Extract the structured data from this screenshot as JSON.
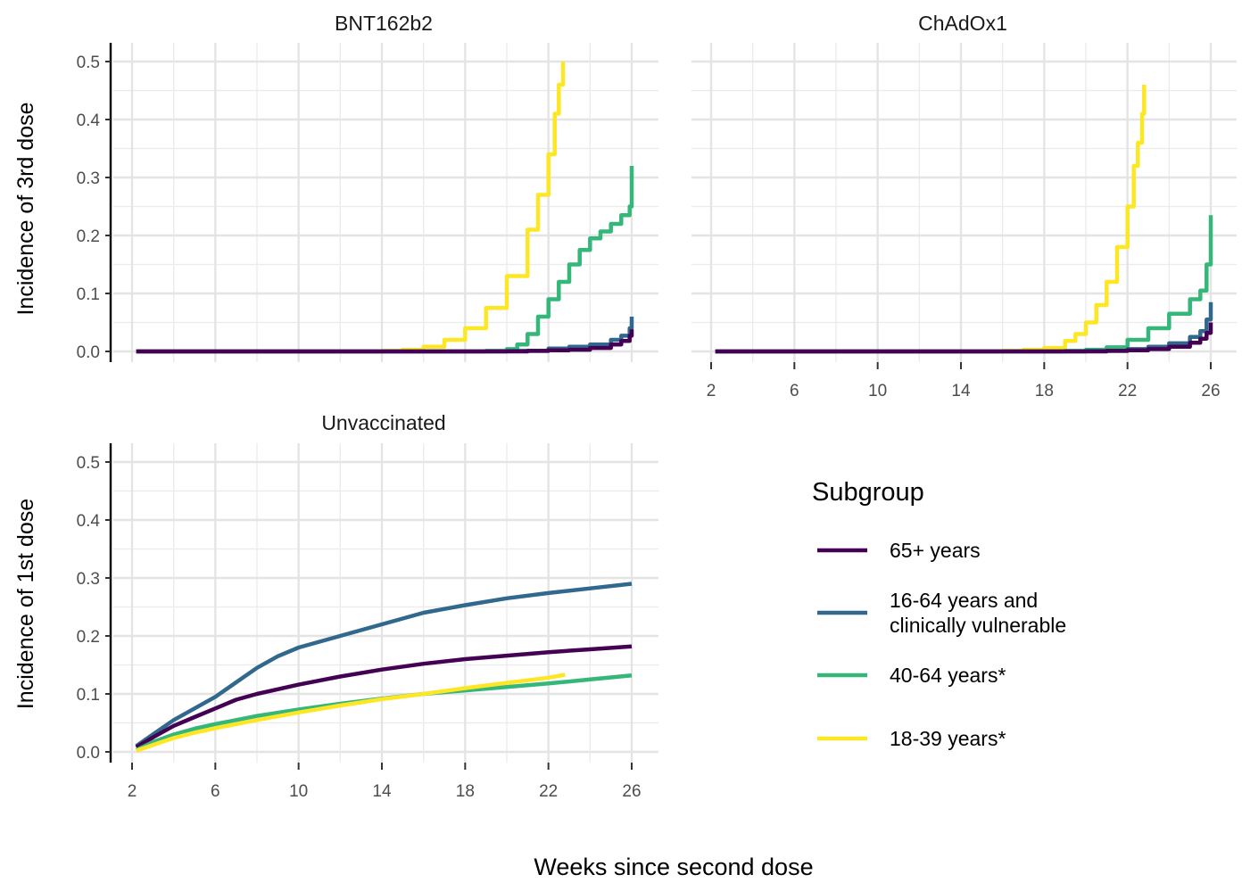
{
  "chart_data": {
    "type": "line",
    "xlabel": "Weeks since second dose",
    "x_ticks": [
      2,
      6,
      10,
      14,
      18,
      22,
      26
    ],
    "y_ticks": [
      0.0,
      0.1,
      0.2,
      0.3,
      0.4,
      0.5
    ],
    "y_tick_labels": [
      "0.0",
      "0.1",
      "0.2",
      "0.3",
      "0.4",
      "0.5"
    ],
    "xlim": [
      2,
      26
    ],
    "ylim": [
      0,
      0.5
    ],
    "grid": true,
    "legend": {
      "title": "Subgroup",
      "placement": "bottom-right",
      "entries": [
        {
          "key": "s65",
          "lines": [
            "65+ years"
          ],
          "color": "#440154"
        },
        {
          "key": "s1664",
          "lines": [
            "16-64 years and",
            "clinically vulnerable"
          ],
          "color": "#31688e"
        },
        {
          "key": "s4064",
          "lines": [
            "40-64 years*"
          ],
          "color": "#35b779"
        },
        {
          "key": "s1839",
          "lines": [
            "18-39 years*"
          ],
          "color": "#fde725"
        }
      ]
    },
    "panels": [
      {
        "key": "bnt",
        "title": "BNT162b2",
        "ylabel": "Incidence of 3rd dose",
        "show_x_ticks": false,
        "step": true,
        "series": [
          {
            "key": "s1839",
            "x": [
              2.2,
              12,
              14,
              15,
              16,
              17,
              18,
              19,
              20,
              21,
              21.5,
              22,
              22.3,
              22.5,
              22.7
            ],
            "y": [
              0,
              0,
              0.001,
              0.003,
              0.008,
              0.02,
              0.04,
              0.075,
              0.13,
              0.21,
              0.27,
              0.34,
              0.41,
              0.46,
              0.5
            ]
          },
          {
            "key": "s4064",
            "x": [
              2.2,
              17,
              19,
              20,
              20.5,
              21,
              21.5,
              22,
              22.5,
              23,
              23.5,
              24,
              24.5,
              25,
              25.5,
              25.9,
              26
            ],
            "y": [
              0,
              0,
              0.001,
              0.004,
              0.012,
              0.03,
              0.06,
              0.09,
              0.12,
              0.15,
              0.175,
              0.195,
              0.207,
              0.22,
              0.235,
              0.25,
              0.32
            ]
          },
          {
            "key": "s1664",
            "x": [
              2.2,
              16,
              20,
              22,
              23,
              24,
              25,
              25.5,
              25.9,
              26
            ],
            "y": [
              0,
              0,
              0.001,
              0.005,
              0.008,
              0.012,
              0.02,
              0.027,
              0.04,
              0.06
            ]
          },
          {
            "key": "s65",
            "x": [
              2.2,
              18,
              21,
              22,
              23,
              24,
              25,
              25.5,
              25.9,
              26
            ],
            "y": [
              0,
              0,
              0.001,
              0.002,
              0.003,
              0.006,
              0.012,
              0.018,
              0.027,
              0.038
            ]
          }
        ]
      },
      {
        "key": "chad",
        "title": "ChAdOx1",
        "ylabel": "",
        "show_x_ticks": true,
        "step": true,
        "series": [
          {
            "key": "s1839",
            "x": [
              2.2,
              14,
              16,
              17,
              18,
              19,
              19.5,
              20,
              20.5,
              21,
              21.5,
              22,
              22.3,
              22.5,
              22.7,
              22.8
            ],
            "y": [
              0,
              0,
              0.001,
              0.003,
              0.006,
              0.018,
              0.03,
              0.05,
              0.08,
              0.12,
              0.18,
              0.25,
              0.32,
              0.36,
              0.41,
              0.46
            ]
          },
          {
            "key": "s4064",
            "x": [
              2.2,
              16,
              19,
              20,
              21,
              22,
              23,
              24,
              25,
              25.5,
              25.8,
              26
            ],
            "y": [
              0,
              0,
              0.001,
              0.003,
              0.007,
              0.02,
              0.04,
              0.065,
              0.09,
              0.105,
              0.15,
              0.235
            ]
          },
          {
            "key": "s1664",
            "x": [
              2.2,
              17,
              20,
              22,
              23,
              24,
              25,
              25.5,
              25.8,
              26
            ],
            "y": [
              0,
              0,
              0.001,
              0.004,
              0.008,
              0.014,
              0.025,
              0.035,
              0.055,
              0.085
            ]
          },
          {
            "key": "s65",
            "x": [
              2.2,
              18,
              21,
              22,
              23,
              24,
              25,
              25.5,
              25.8,
              26
            ],
            "y": [
              0,
              0,
              0.001,
              0.002,
              0.004,
              0.008,
              0.015,
              0.022,
              0.032,
              0.05
            ]
          }
        ]
      },
      {
        "key": "unvax",
        "title": "Unvaccinated",
        "ylabel": "Incidence of 1st dose",
        "show_x_ticks": true,
        "step": false,
        "series": [
          {
            "key": "s1664",
            "x": [
              2.2,
              3,
              4,
              5,
              6,
              7,
              8,
              9,
              10,
              12,
              14,
              16,
              18,
              20,
              22,
              24,
              26
            ],
            "y": [
              0.01,
              0.03,
              0.055,
              0.075,
              0.095,
              0.12,
              0.145,
              0.165,
              0.18,
              0.2,
              0.22,
              0.24,
              0.253,
              0.265,
              0.274,
              0.282,
              0.29
            ]
          },
          {
            "key": "s65",
            "x": [
              2.2,
              3,
              4,
              5,
              6,
              7,
              8,
              9,
              10,
              12,
              14,
              16,
              18,
              20,
              22,
              24,
              26
            ],
            "y": [
              0.008,
              0.025,
              0.045,
              0.06,
              0.075,
              0.09,
              0.1,
              0.108,
              0.116,
              0.13,
              0.142,
              0.152,
              0.16,
              0.166,
              0.172,
              0.177,
              0.182
            ]
          },
          {
            "key": "s4064",
            "x": [
              2.2,
              3,
              4,
              5,
              6,
              7,
              8,
              10,
              12,
              14,
              16,
              18,
              20,
              22,
              24,
              26
            ],
            "y": [
              0.003,
              0.017,
              0.03,
              0.04,
              0.048,
              0.055,
              0.062,
              0.073,
              0.083,
              0.092,
              0.1,
              0.106,
              0.112,
              0.118,
              0.125,
              0.132
            ]
          },
          {
            "key": "s1839",
            "x": [
              2.2,
              3,
              4,
              5,
              6,
              7,
              8,
              10,
              12,
              14,
              16,
              18,
              20,
              22,
              22.8
            ],
            "y": [
              0.002,
              0.012,
              0.024,
              0.033,
              0.041,
              0.048,
              0.055,
              0.068,
              0.08,
              0.091,
              0.1,
              0.11,
              0.119,
              0.128,
              0.133
            ]
          }
        ]
      }
    ]
  }
}
